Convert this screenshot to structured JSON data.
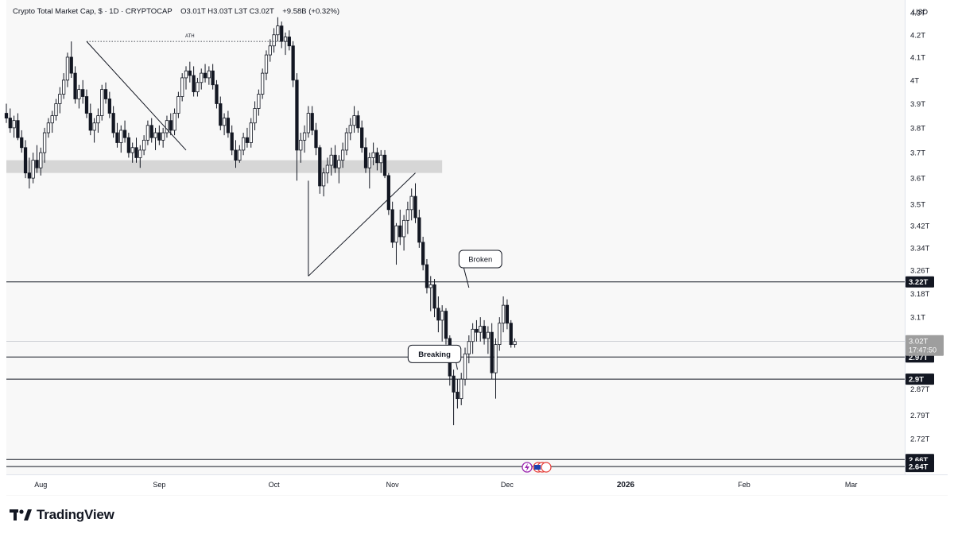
{
  "header": {
    "symbol": "Crypto Total Market Cap, $",
    "interval": "1D",
    "exchange": "CRYPTOCAP",
    "ohlc": "O3.01T  H3.03T  L3T  C3.02T",
    "change": "+9.58B (+0.32%)"
  },
  "currency_label": "USD",
  "countdown": "17:47:50",
  "brand": "TradingView",
  "colors": {
    "up": "#ffffff",
    "down": "#131722",
    "zone": "#d6d6d6",
    "price_tag": "#9e9e9e"
  },
  "chart_data": {
    "type": "candlestick",
    "y_axis": {
      "scale": "log",
      "ylim": [
        2.62,
        4.36
      ],
      "ticks": [
        4.3,
        4.2,
        4.1,
        4.0,
        3.9,
        3.8,
        3.7,
        3.6,
        3.5,
        3.42,
        3.34,
        3.26,
        3.18,
        3.1,
        2.87,
        2.79,
        2.72
      ],
      "tick_labels": [
        "4.3T",
        "4.2T",
        "4.1T",
        "4T",
        "3.9T",
        "3.8T",
        "3.7T",
        "3.6T",
        "3.5T",
        "3.42T",
        "3.34T",
        "3.26T",
        "3.18T",
        "3.1T",
        "2.87T",
        "2.79T",
        "2.72T"
      ]
    },
    "x_axis": {
      "start": "2025-07-23",
      "end": "2026-03-15",
      "ticks": [
        {
          "date": "2025-08-01",
          "label": "Aug",
          "bold": false
        },
        {
          "date": "2025-09-01",
          "label": "Sep",
          "bold": false
        },
        {
          "date": "2025-10-01",
          "label": "Oct",
          "bold": false
        },
        {
          "date": "2025-11-01",
          "label": "Nov",
          "bold": false
        },
        {
          "date": "2025-12-01",
          "label": "Dec",
          "bold": false
        },
        {
          "date": "2026-01-01",
          "label": "2026",
          "bold": true
        },
        {
          "date": "2026-02-01",
          "label": "Feb",
          "bold": false
        },
        {
          "date": "2026-03-01",
          "label": "Mar",
          "bold": false
        }
      ]
    },
    "candles_start": "2025-07-23",
    "candles": [
      [
        3.86,
        3.9,
        3.82,
        3.84
      ],
      [
        3.84,
        3.88,
        3.78,
        3.8
      ],
      [
        3.8,
        3.85,
        3.76,
        3.83
      ],
      [
        3.83,
        3.86,
        3.75,
        3.76
      ],
      [
        3.76,
        3.79,
        3.7,
        3.72
      ],
      [
        3.72,
        3.75,
        3.6,
        3.62
      ],
      [
        3.62,
        3.68,
        3.56,
        3.6
      ],
      [
        3.6,
        3.7,
        3.58,
        3.67
      ],
      [
        3.67,
        3.73,
        3.62,
        3.64
      ],
      [
        3.64,
        3.72,
        3.61,
        3.7
      ],
      [
        3.7,
        3.8,
        3.66,
        3.78
      ],
      [
        3.78,
        3.84,
        3.76,
        3.82
      ],
      [
        3.82,
        3.87,
        3.78,
        3.85
      ],
      [
        3.85,
        3.92,
        3.83,
        3.9
      ],
      [
        3.9,
        3.97,
        3.86,
        3.94
      ],
      [
        3.94,
        4.03,
        3.92,
        4.0
      ],
      [
        4.0,
        4.12,
        3.97,
        4.1
      ],
      [
        4.1,
        4.17,
        4.01,
        4.03
      ],
      [
        4.03,
        4.06,
        3.9,
        3.92
      ],
      [
        3.92,
        3.98,
        3.88,
        3.96
      ],
      [
        3.96,
        4.0,
        3.9,
        3.93
      ],
      [
        3.93,
        3.96,
        3.84,
        3.86
      ],
      [
        3.86,
        3.9,
        3.77,
        3.79
      ],
      [
        3.79,
        3.84,
        3.74,
        3.82
      ],
      [
        3.82,
        3.88,
        3.78,
        3.85
      ],
      [
        3.85,
        3.98,
        3.83,
        3.96
      ],
      [
        3.96,
        3.99,
        3.9,
        3.92
      ],
      [
        3.92,
        3.95,
        3.84,
        3.86
      ],
      [
        3.86,
        3.89,
        3.76,
        3.78
      ],
      [
        3.78,
        3.82,
        3.72,
        3.74
      ],
      [
        3.74,
        3.81,
        3.7,
        3.79
      ],
      [
        3.79,
        3.83,
        3.74,
        3.76
      ],
      [
        3.76,
        3.78,
        3.68,
        3.7
      ],
      [
        3.7,
        3.74,
        3.66,
        3.72
      ],
      [
        3.72,
        3.76,
        3.66,
        3.68
      ],
      [
        3.68,
        3.73,
        3.64,
        3.71
      ],
      [
        3.71,
        3.77,
        3.69,
        3.75
      ],
      [
        3.75,
        3.83,
        3.73,
        3.81
      ],
      [
        3.81,
        3.84,
        3.74,
        3.76
      ],
      [
        3.76,
        3.8,
        3.71,
        3.78
      ],
      [
        3.78,
        3.81,
        3.73,
        3.75
      ],
      [
        3.75,
        3.8,
        3.72,
        3.78
      ],
      [
        3.78,
        3.85,
        3.76,
        3.83
      ],
      [
        3.83,
        3.86,
        3.77,
        3.79
      ],
      [
        3.79,
        3.88,
        3.77,
        3.86
      ],
      [
        3.86,
        3.95,
        3.84,
        3.93
      ],
      [
        3.93,
        4.03,
        3.91,
        4.01
      ],
      [
        4.01,
        4.06,
        3.96,
        4.04
      ],
      [
        4.04,
        4.08,
        3.99,
        4.02
      ],
      [
        4.02,
        4.06,
        3.93,
        3.95
      ],
      [
        3.95,
        4.01,
        3.93,
        3.99
      ],
      [
        3.99,
        4.05,
        3.96,
        4.03
      ],
      [
        4.03,
        4.07,
        3.99,
        4.01
      ],
      [
        4.01,
        4.06,
        3.98,
        4.04
      ],
      [
        4.04,
        4.07,
        3.96,
        3.98
      ],
      [
        3.98,
        4.0,
        3.88,
        3.9
      ],
      [
        3.9,
        3.93,
        3.79,
        3.81
      ],
      [
        3.81,
        3.86,
        3.77,
        3.84
      ],
      [
        3.84,
        3.87,
        3.76,
        3.78
      ],
      [
        3.78,
        3.81,
        3.69,
        3.71
      ],
      [
        3.71,
        3.75,
        3.64,
        3.67
      ],
      [
        3.67,
        3.73,
        3.66,
        3.71
      ],
      [
        3.71,
        3.78,
        3.69,
        3.76
      ],
      [
        3.76,
        3.8,
        3.72,
        3.74
      ],
      [
        3.74,
        3.84,
        3.72,
        3.82
      ],
      [
        3.82,
        3.91,
        3.79,
        3.88
      ],
      [
        3.88,
        3.96,
        3.85,
        3.94
      ],
      [
        3.94,
        4.05,
        3.92,
        4.03
      ],
      [
        4.03,
        4.13,
        4.0,
        4.11
      ],
      [
        4.11,
        4.18,
        4.08,
        4.15
      ],
      [
        4.15,
        4.23,
        4.12,
        4.2
      ],
      [
        4.2,
        4.28,
        4.17,
        4.24
      ],
      [
        4.24,
        4.26,
        4.14,
        4.17
      ],
      [
        4.17,
        4.21,
        4.11,
        4.19
      ],
      [
        4.19,
        4.22,
        4.13,
        4.15
      ],
      [
        4.15,
        4.17,
        3.97,
        4.0
      ],
      [
        4.0,
        4.03,
        3.59,
        3.71
      ],
      [
        3.71,
        3.78,
        3.66,
        3.75
      ],
      [
        3.75,
        3.81,
        3.7,
        3.78
      ],
      [
        3.78,
        3.89,
        3.76,
        3.86
      ],
      [
        3.86,
        3.89,
        3.77,
        3.79
      ],
      [
        3.79,
        3.82,
        3.69,
        3.72
      ],
      [
        3.72,
        3.73,
        3.54,
        3.57
      ],
      [
        3.57,
        3.64,
        3.53,
        3.62
      ],
      [
        3.62,
        3.68,
        3.58,
        3.65
      ],
      [
        3.65,
        3.72,
        3.61,
        3.69
      ],
      [
        3.69,
        3.73,
        3.62,
        3.64
      ],
      [
        3.64,
        3.69,
        3.58,
        3.67
      ],
      [
        3.67,
        3.74,
        3.64,
        3.71
      ],
      [
        3.71,
        3.8,
        3.69,
        3.78
      ],
      [
        3.78,
        3.84,
        3.75,
        3.81
      ],
      [
        3.81,
        3.89,
        3.78,
        3.85
      ],
      [
        3.85,
        3.87,
        3.78,
        3.8
      ],
      [
        3.8,
        3.83,
        3.7,
        3.72
      ],
      [
        3.72,
        3.76,
        3.62,
        3.64
      ],
      [
        3.64,
        3.7,
        3.56,
        3.68
      ],
      [
        3.68,
        3.74,
        3.65,
        3.7
      ],
      [
        3.7,
        3.72,
        3.63,
        3.66
      ],
      [
        3.66,
        3.71,
        3.62,
        3.69
      ],
      [
        3.69,
        3.71,
        3.6,
        3.61
      ],
      [
        3.61,
        3.62,
        3.46,
        3.48
      ],
      [
        3.48,
        3.51,
        3.34,
        3.36
      ],
      [
        3.36,
        3.43,
        3.28,
        3.42
      ],
      [
        3.42,
        3.48,
        3.35,
        3.38
      ],
      [
        3.38,
        3.46,
        3.33,
        3.44
      ],
      [
        3.44,
        3.51,
        3.39,
        3.48
      ],
      [
        3.48,
        3.56,
        3.44,
        3.53
      ],
      [
        3.53,
        3.58,
        3.43,
        3.45
      ],
      [
        3.45,
        3.48,
        3.34,
        3.36
      ],
      [
        3.36,
        3.38,
        3.26,
        3.28
      ],
      [
        3.28,
        3.3,
        3.18,
        3.2
      ],
      [
        3.2,
        3.24,
        3.12,
        3.21
      ],
      [
        3.21,
        3.23,
        3.1,
        3.13
      ],
      [
        3.13,
        3.17,
        3.05,
        3.09
      ],
      [
        3.09,
        3.14,
        3.02,
        3.12
      ],
      [
        3.12,
        3.13,
        3.01,
        3.03
      ],
      [
        3.03,
        3.04,
        2.88,
        2.91
      ],
      [
        2.91,
        2.93,
        2.76,
        2.86
      ],
      [
        2.86,
        2.9,
        2.81,
        2.84
      ],
      [
        2.84,
        2.92,
        2.82,
        2.9
      ],
      [
        2.9,
        3.0,
        2.88,
        2.98
      ],
      [
        2.98,
        3.04,
        2.95,
        3.02
      ],
      [
        3.02,
        3.08,
        2.98,
        3.06
      ],
      [
        3.06,
        3.09,
        3.02,
        3.05
      ],
      [
        3.05,
        3.1,
        3.02,
        3.07
      ],
      [
        3.07,
        3.09,
        3.01,
        3.03
      ],
      [
        3.03,
        3.07,
        2.98,
        3.05
      ],
      [
        3.05,
        3.08,
        2.9,
        2.92
      ],
      [
        2.92,
        3.03,
        2.84,
        3.01
      ],
      [
        3.01,
        3.1,
        2.99,
        3.08
      ],
      [
        3.08,
        3.17,
        3.05,
        3.14
      ],
      [
        3.14,
        3.16,
        3.06,
        3.08
      ],
      [
        3.08,
        3.09,
        3.0,
        3.01
      ],
      [
        3.01,
        3.03,
        3.0,
        3.02
      ]
    ],
    "horizontal_lines": [
      3.22,
      2.97,
      2.9,
      2.66,
      2.64
    ],
    "price_tags": [
      "3.22T",
      "2.97T",
      "2.9T",
      "2.66T",
      "2.64T"
    ],
    "current_price": {
      "value": 3.02,
      "label": "3.02T"
    },
    "zone": {
      "from": "2025-07-23",
      "to": "2025-11-14",
      "low": 3.62,
      "high": 3.67
    },
    "annotations": [
      {
        "type": "dotted-line",
        "label": "ATH",
        "from": [
          "2025-08-13",
          4.17
        ],
        "to": [
          "2025-10-06",
          4.17
        ]
      },
      {
        "type": "trendline",
        "from": [
          "2025-08-13",
          4.17
        ],
        "to": [
          "2025-09-08",
          3.71
        ]
      },
      {
        "type": "trendline",
        "from": [
          "2025-10-10",
          3.59
        ],
        "to": [
          "2025-10-10",
          3.24
        ]
      },
      {
        "type": "trendline",
        "from": [
          "2025-10-10",
          3.24
        ],
        "to": [
          "2025-11-07",
          3.62
        ]
      },
      {
        "type": "callout",
        "text": "Broken",
        "at": [
          "2025-11-24",
          3.3
        ],
        "pointer": [
          "2025-11-21",
          3.2
        ]
      },
      {
        "type": "callout",
        "text": "Breaking",
        "at": [
          "2025-11-12",
          2.98
        ],
        "pointer": [
          "2025-11-18",
          2.93
        ]
      }
    ]
  }
}
